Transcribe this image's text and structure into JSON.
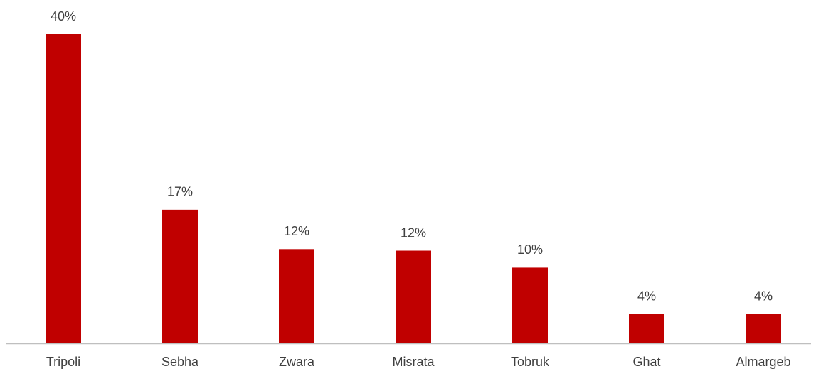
{
  "chart_data": {
    "type": "bar",
    "categories": [
      "Tripoli",
      "Sebha",
      "Zwara",
      "Misrata",
      "Tobruk",
      "Ghat",
      "Almargeb"
    ],
    "values": [
      40,
      17.3,
      12.2,
      12,
      9.8,
      3.8,
      3.8
    ],
    "value_labels": [
      "40%",
      "17%",
      "12%",
      "12%",
      "10%",
      "4%",
      "4%"
    ],
    "color": "#c00000"
  }
}
